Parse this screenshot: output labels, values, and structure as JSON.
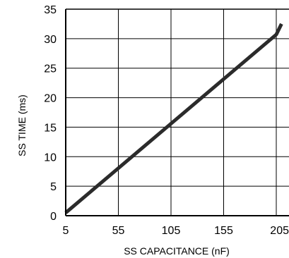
{
  "chart_data": {
    "type": "line",
    "xlabel": "SS CAPACITANCE (nF)",
    "ylabel": "SS TIME (ms)",
    "xlim": [
      5,
      210
    ],
    "ylim": [
      0,
      35
    ],
    "x_ticks": [
      5,
      55,
      105,
      155,
      205
    ],
    "x_tick_labels": [
      "5",
      "55",
      "105",
      "155",
      "205"
    ],
    "y_ticks": [
      0,
      5,
      10,
      15,
      20,
      25,
      30,
      35
    ],
    "y_tick_labels": [
      "0",
      "5",
      "10",
      "15",
      "20",
      "25",
      "30",
      "35"
    ],
    "grid": true,
    "series": [
      {
        "x": [
          5,
          205,
          210
        ],
        "y": [
          0.5,
          30.7,
          32.5
        ],
        "color": "#2b2b2b"
      }
    ]
  }
}
